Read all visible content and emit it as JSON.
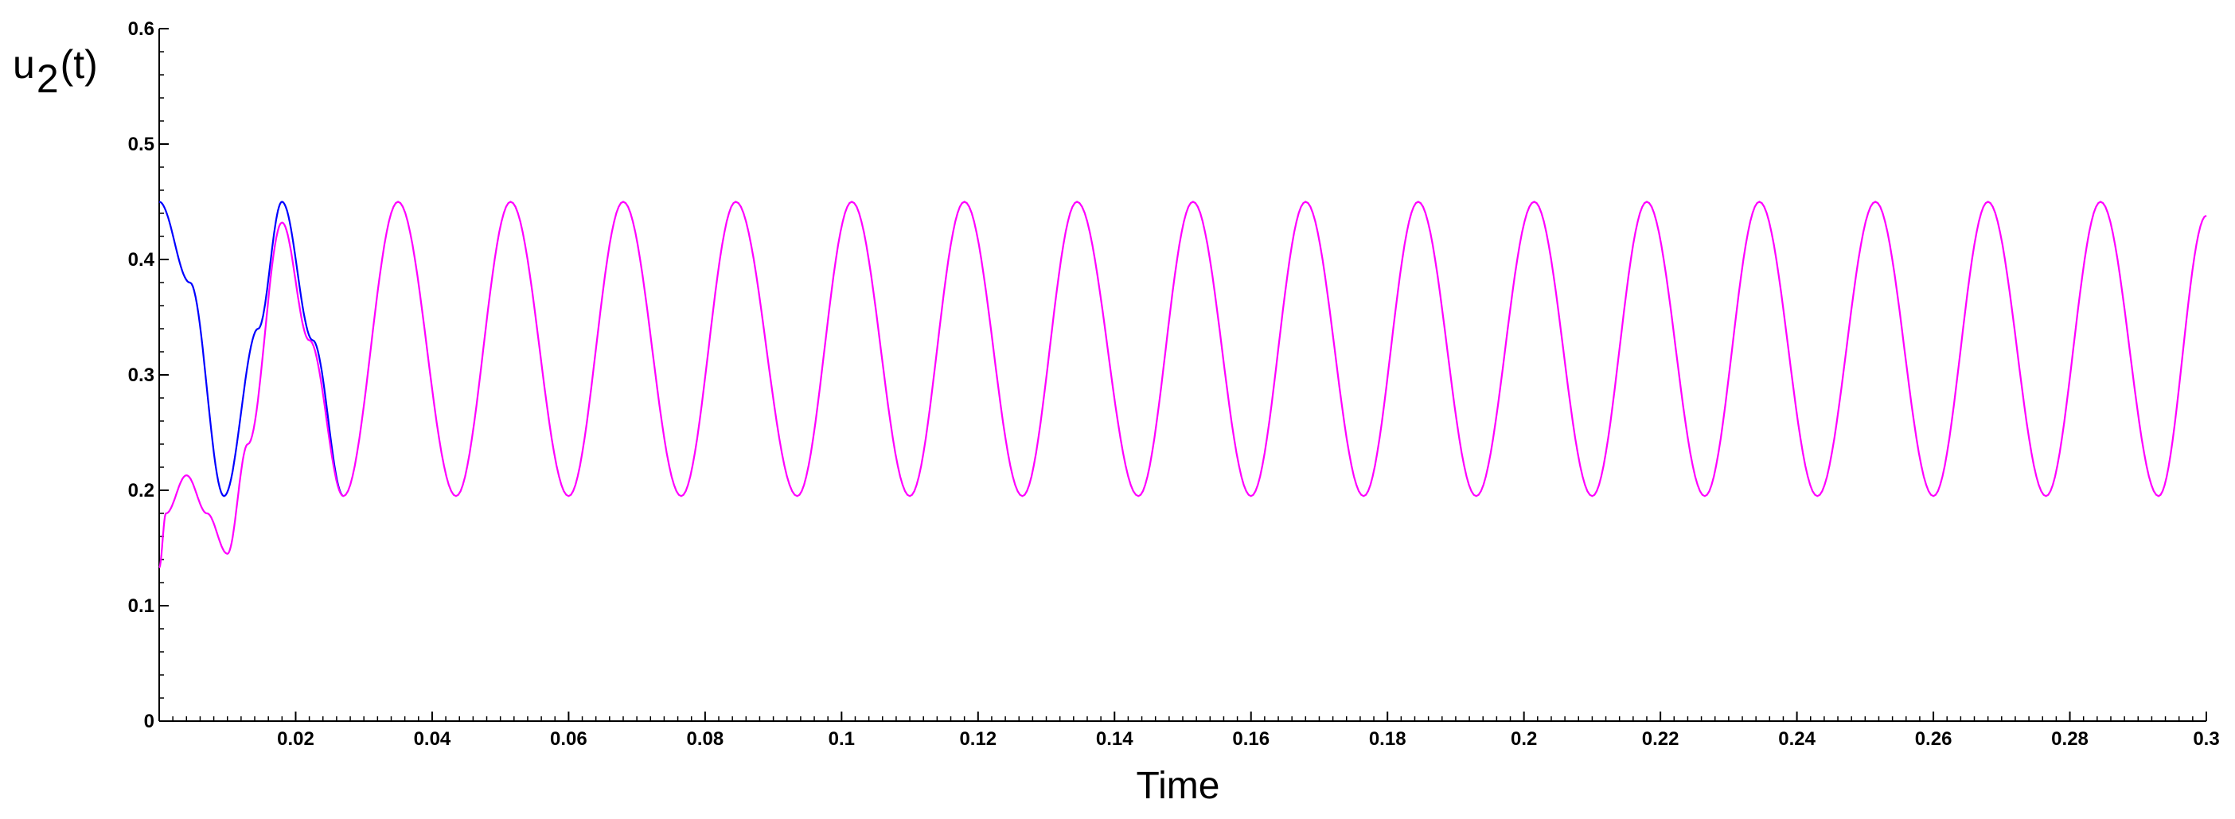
{
  "chart_data": {
    "type": "line",
    "title": "",
    "xlabel": "Time",
    "ylabel": {
      "main": "u",
      "sub": "2",
      "tail": "(t)"
    },
    "xlim": [
      0,
      0.3
    ],
    "ylim": [
      0,
      0.6
    ],
    "grid": false,
    "x_ticks": [
      "0.02",
      "0.04",
      "0.06",
      "0.08",
      "0.1",
      "0.12",
      "0.14",
      "0.16",
      "0.18",
      "0.2",
      "0.22",
      "0.24",
      "0.26",
      "0.28",
      "0.3"
    ],
    "y_ticks": [
      "0",
      "0.1",
      "0.2",
      "0.3",
      "0.4",
      "0.5",
      "0.6"
    ],
    "series": [
      {
        "color": "#0000ff",
        "points": [
          [
            0,
            0.45
          ],
          [
            0.0045,
            0.38
          ],
          [
            0.0095,
            0.195
          ],
          [
            0.0145,
            0.34
          ],
          [
            0.018,
            0.45
          ],
          [
            0.0225,
            0.33
          ],
          [
            0.027,
            0.195
          ]
        ]
      },
      {
        "color": "#ff00ff",
        "points": [
          [
            0,
            0.133
          ],
          [
            0.001,
            0.18
          ],
          [
            0.004,
            0.213
          ],
          [
            0.007,
            0.18
          ],
          [
            0.01,
            0.145
          ],
          [
            0.013,
            0.24
          ],
          [
            0.018,
            0.432
          ],
          [
            0.022,
            0.33
          ],
          [
            0.027,
            0.195
          ],
          [
            0.035,
            0.45
          ],
          [
            0.0435,
            0.195
          ],
          [
            0.0515,
            0.45
          ],
          [
            0.06,
            0.195
          ],
          [
            0.068,
            0.45
          ],
          [
            0.0765,
            0.195
          ],
          [
            0.0845,
            0.45
          ],
          [
            0.0935,
            0.195
          ],
          [
            0.1015,
            0.45
          ],
          [
            0.11,
            0.195
          ],
          [
            0.118,
            0.45
          ],
          [
            0.1265,
            0.195
          ],
          [
            0.1345,
            0.45
          ],
          [
            0.1435,
            0.195
          ],
          [
            0.1515,
            0.45
          ],
          [
            0.16,
            0.195
          ],
          [
            0.168,
            0.45
          ],
          [
            0.1765,
            0.195
          ],
          [
            0.1845,
            0.45
          ],
          [
            0.193,
            0.195
          ],
          [
            0.2015,
            0.45
          ],
          [
            0.21,
            0.195
          ],
          [
            0.218,
            0.45
          ],
          [
            0.2265,
            0.195
          ],
          [
            0.2345,
            0.45
          ],
          [
            0.243,
            0.195
          ],
          [
            0.2515,
            0.45
          ],
          [
            0.26,
            0.195
          ],
          [
            0.268,
            0.45
          ],
          [
            0.2765,
            0.195
          ],
          [
            0.2845,
            0.45
          ],
          [
            0.293,
            0.195
          ],
          [
            0.3,
            0.438
          ]
        ]
      }
    ]
  }
}
